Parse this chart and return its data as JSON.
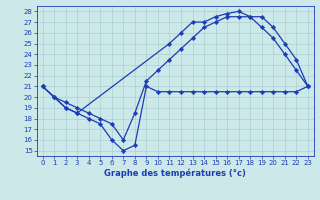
{
  "title": "Graphe des températures (°c)",
  "bg_color": "#cce8e8",
  "grid_color": "#b0d4d4",
  "line_color": "#1c3db5",
  "marker": "D",
  "markersize": 2.2,
  "xlim": [
    -0.5,
    23.5
  ],
  "ylim": [
    14.5,
    28.5
  ],
  "xticks": [
    0,
    1,
    2,
    3,
    4,
    5,
    6,
    7,
    8,
    9,
    10,
    11,
    12,
    13,
    14,
    15,
    16,
    17,
    18,
    19,
    20,
    21,
    22,
    23
  ],
  "yticks": [
    15,
    16,
    17,
    18,
    19,
    20,
    21,
    22,
    23,
    24,
    25,
    26,
    27,
    28
  ],
  "line1_x": [
    0,
    1,
    2,
    3,
    11,
    12,
    13,
    14,
    15,
    16,
    17,
    18,
    19,
    20,
    21,
    22,
    23
  ],
  "line1_y": [
    21.0,
    20.0,
    19.0,
    18.5,
    25.0,
    26.0,
    27.0,
    27.0,
    27.5,
    27.8,
    28.0,
    27.5,
    27.5,
    26.5,
    25.0,
    23.5,
    21.0
  ],
  "line2_x": [
    0,
    1,
    2,
    3,
    4,
    5,
    6,
    7,
    8,
    9,
    10,
    11,
    12,
    13,
    14,
    15,
    16,
    17,
    18,
    19,
    20,
    21,
    22,
    23
  ],
  "line2_y": [
    21.0,
    20.0,
    19.5,
    19.0,
    18.5,
    18.0,
    17.5,
    16.0,
    18.5,
    21.5,
    22.5,
    23.5,
    24.5,
    25.5,
    26.5,
    27.0,
    27.5,
    27.5,
    27.5,
    26.5,
    25.5,
    24.0,
    22.5,
    21.0
  ],
  "line3_x": [
    0,
    1,
    2,
    3,
    4,
    5,
    6,
    7,
    8,
    9,
    10,
    11,
    12,
    13,
    14,
    15,
    16,
    17,
    18,
    19,
    20,
    21,
    22,
    23
  ],
  "line3_y": [
    21.0,
    20.0,
    19.0,
    18.5,
    18.0,
    17.5,
    16.0,
    15.0,
    15.5,
    21.0,
    20.5,
    20.5,
    20.5,
    20.5,
    20.5,
    20.5,
    20.5,
    20.5,
    20.5,
    20.5,
    20.5,
    20.5,
    20.5,
    21.0
  ]
}
